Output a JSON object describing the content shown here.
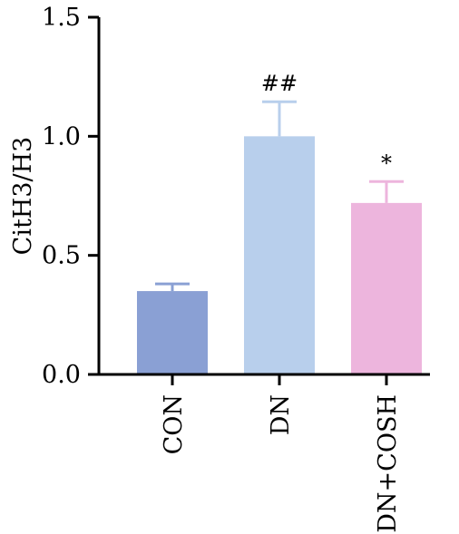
{
  "chart_data": {
    "type": "bar",
    "categories": [
      "CON",
      "DN",
      "DN+COSH"
    ],
    "values": [
      0.35,
      1.0,
      0.72
    ],
    "errors": [
      0.03,
      0.145,
      0.09
    ],
    "annotations": [
      "",
      "##",
      "*"
    ],
    "colors": [
      "#8aa0d4",
      "#b8cfec",
      "#edb5dd"
    ],
    "error_colors": [
      "#8aa0d4",
      "#b8cfec",
      "#edb5dd"
    ],
    "ylabel": "CitH3/H3",
    "xlabel": "",
    "title": "",
    "ylim": [
      0,
      1.5
    ],
    "yticks": [
      "0.0",
      "0.5",
      "1.0",
      "1.5"
    ],
    "ytick_values": [
      0,
      0.5,
      1.0,
      1.5
    ],
    "grid": false,
    "legend": "none"
  }
}
